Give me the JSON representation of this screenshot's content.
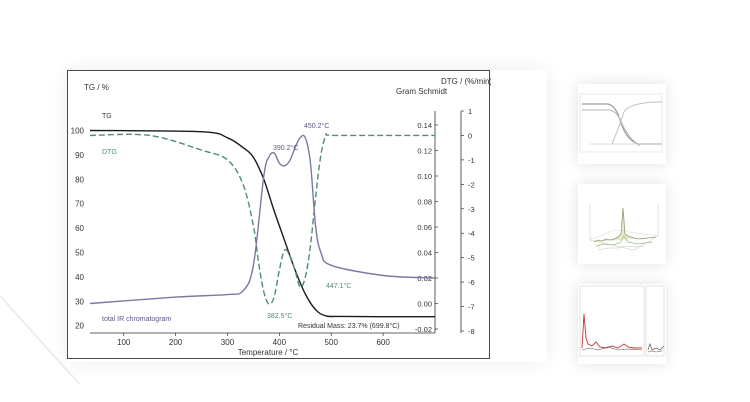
{
  "chart_data": {
    "type": "line",
    "title": "",
    "xlabel": "Temperature / °C",
    "left_axis_label": "TG / %",
    "right_axis_label": "DTG / (%/min)",
    "right_inner_axis_label": "Gram Schmidt",
    "x_ticks": [
      "100",
      "200",
      "300",
      "400",
      "500",
      "600"
    ],
    "x_range": [
      35,
      700
    ],
    "left_ticks": [
      "100",
      "90",
      "80",
      "70",
      "60",
      "50",
      "40",
      "30",
      "20"
    ],
    "left_range": [
      17,
      108
    ],
    "gs_ticks": [
      "0.14",
      "0.12",
      "0.10",
      "0.08",
      "0.06",
      "0.04",
      "0.02",
      "0.00",
      "-0.02"
    ],
    "dtg_ticks": [
      "1",
      "0",
      "-1",
      "-2",
      "-3",
      "-4",
      "-5",
      "-6",
      "-7",
      "-8"
    ],
    "series": [
      {
        "name": "TG",
        "color": "#1a1a1a",
        "x": [
          35,
          250,
          300,
          330,
          350,
          370,
          390,
          410,
          430,
          450,
          470,
          490,
          520,
          600,
          700
        ],
        "y": [
          100,
          99.5,
          97,
          93,
          89,
          80,
          67,
          55,
          43,
          33,
          26.5,
          24,
          23.8,
          23.7,
          23.7
        ]
      },
      {
        "name": "DTG",
        "color": "#4f8f6f",
        "x": [
          35,
          150,
          250,
          300,
          330,
          350,
          360,
          370,
          380,
          390,
          400,
          410,
          420,
          430,
          440,
          450,
          460,
          470,
          480,
          490,
          500,
          600,
          700
        ],
        "y": [
          0,
          0,
          -0.6,
          -1.0,
          -2.0,
          -3.7,
          -5.2,
          -6.4,
          -6.9,
          -6.6,
          -5.5,
          -4.7,
          -4.9,
          -5.5,
          -6.2,
          -5.8,
          -4.5,
          -2.5,
          -0.8,
          0,
          0,
          0,
          0
        ]
      },
      {
        "name": "total IR chromatogram",
        "color": "#7a7a9e",
        "x": [
          35,
          200,
          300,
          330,
          350,
          370,
          380,
          390,
          400,
          410,
          420,
          430,
          440,
          450,
          460,
          470,
          480,
          500,
          600,
          700
        ],
        "y": [
          0.0,
          0.005,
          0.007,
          0.01,
          0.03,
          0.1,
          0.115,
          0.118,
          0.11,
          0.108,
          0.112,
          0.122,
          0.13,
          0.13,
          0.11,
          0.06,
          0.04,
          0.03,
          0.022,
          0.02
        ]
      }
    ],
    "annotations": [
      {
        "text": "390.2°C",
        "x": 390,
        "series": "total IR chromatogram"
      },
      {
        "text": "450.2°C",
        "x": 450,
        "series": "total IR chromatogram"
      },
      {
        "text": "382.5°C",
        "x": 382.5,
        "series": "DTG"
      },
      {
        "text": "447.1°C",
        "x": 447.1,
        "series": "DTG"
      },
      {
        "text": "Residual Mass:  23.7% (699.8°C)"
      }
    ],
    "grid": false
  },
  "thumbnails": [
    {
      "name": "thumb-1",
      "description": ""
    },
    {
      "name": "thumb-2",
      "description": ""
    },
    {
      "name": "thumb-3",
      "description": ""
    }
  ]
}
